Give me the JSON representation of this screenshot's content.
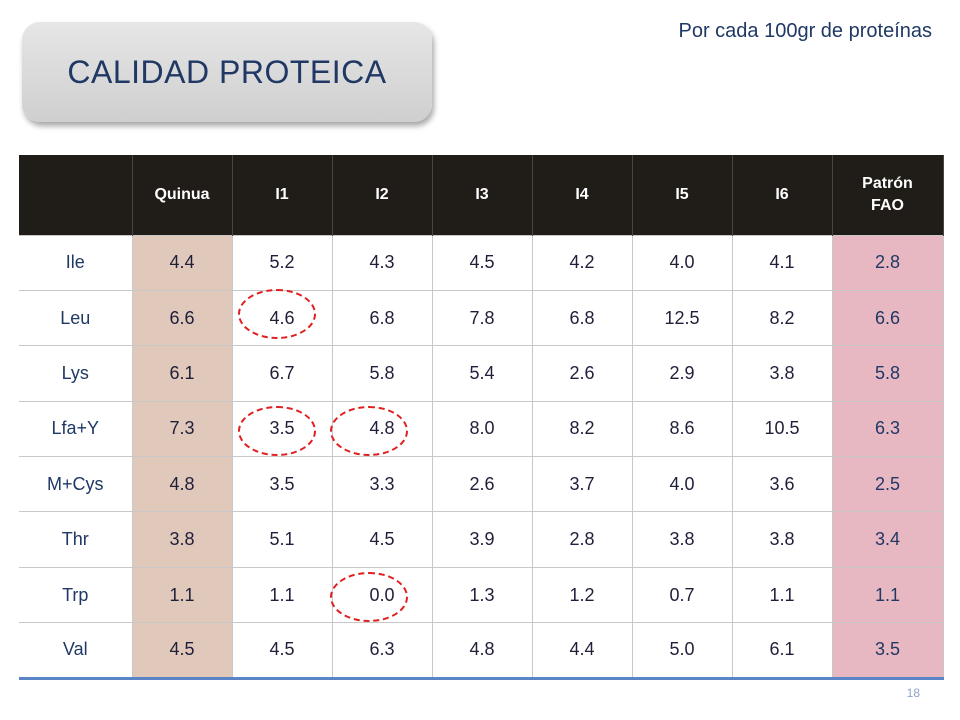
{
  "title": "CALIDAD PROTEICA",
  "subtitle": "Por cada 100gr de proteínas",
  "page_number": "18",
  "table": {
    "headers": [
      "",
      "Quinua",
      "I1",
      "I2",
      "I3",
      "I4",
      "I5",
      "I6",
      "Patrón FAO"
    ],
    "rows": [
      [
        "Ile",
        "4.4",
        "5.2",
        "4.3",
        "4.5",
        "4.2",
        "4.0",
        "4.1",
        "2.8"
      ],
      [
        "Leu",
        "6.6",
        "4.6",
        "6.8",
        "7.8",
        "6.8",
        "12.5",
        "8.2",
        "6.6"
      ],
      [
        "Lys",
        "6.1",
        "6.7",
        "5.8",
        "5.4",
        "2.6",
        "2.9",
        "3.8",
        "5.8"
      ],
      [
        "Lfa+Y",
        "7.3",
        "3.5",
        "4.8",
        "8.0",
        "8.2",
        "8.6",
        "10.5",
        "6.3"
      ],
      [
        "M+Cys",
        "4.8",
        "3.5",
        "3.3",
        "2.6",
        "3.7",
        "4.0",
        "3.6",
        "2.5"
      ],
      [
        "Thr",
        "3.8",
        "5.1",
        "4.5",
        "3.9",
        "2.8",
        "3.8",
        "3.8",
        "3.4"
      ],
      [
        "Trp",
        "1.1",
        "1.1",
        "0.0",
        "1.3",
        "1.2",
        "0.7",
        "1.1",
        "1.1"
      ],
      [
        "Val",
        "4.5",
        "4.5",
        "6.3",
        "4.8",
        "4.4",
        "5.0",
        "6.1",
        "3.5"
      ]
    ]
  },
  "colors": {
    "header_bg": "#201c17",
    "quinua_col": "#e0c8bb",
    "fao_col": "#e8b8c2",
    "title_text": "#1f3864",
    "highlight_circle": "#e02020"
  }
}
